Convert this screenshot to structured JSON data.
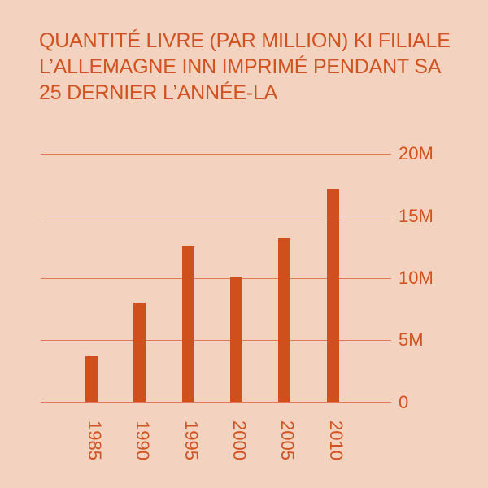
{
  "title_lines": [
    "QUANTITÉ LIVRE (PAR MILLION) KI FILIALE",
    "L’ALLEMAGNE INN IMPRIMÉ PENDANT SA",
    "25 DERNIER L’ANNÉE-LA"
  ],
  "colors": {
    "background": "#f3d2bf",
    "accent": "#cf501d",
    "grid": "#e07a55"
  },
  "chart_data": {
    "type": "bar",
    "title": "QUANTITÉ LIVRE (PAR MILLION) KI FILIALE L’ALLEMAGNE INN IMPRIMÉ PENDANT SA 25 DERNIER L’ANNÉE-LA",
    "categories": [
      "1985",
      "1990",
      "1995",
      "2000",
      "2005",
      "2010"
    ],
    "values": [
      3.7,
      8.0,
      12.5,
      10.1,
      13.2,
      17.2
    ],
    "unit": "M",
    "xlabel": "",
    "ylabel": "",
    "ylim": [
      0,
      20
    ],
    "yticks": [
      "0",
      "5M",
      "10M",
      "15M",
      "20M"
    ],
    "grid": true,
    "y_axis_position": "right",
    "x_label_rotation": 90
  }
}
